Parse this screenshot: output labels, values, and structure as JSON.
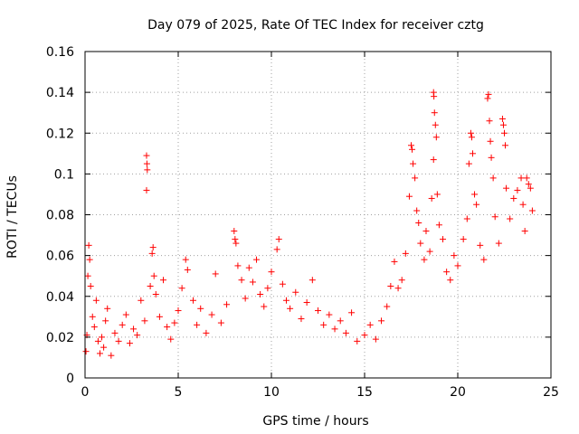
{
  "chart_data": {
    "type": "scatter",
    "title": "Day 079 of 2025, Rate Of TEC Index for receiver cztg",
    "xlabel": "GPS time / hours",
    "ylabel": "ROTI / TECUs",
    "xlim": [
      0,
      25
    ],
    "ylim": [
      0,
      0.16
    ],
    "xticks": [
      0,
      5,
      10,
      15,
      20,
      25
    ],
    "xtick_labels": [
      "0",
      "5",
      "10",
      "15",
      "20",
      "25"
    ],
    "yticks": [
      0,
      0.02,
      0.04,
      0.06,
      0.08,
      0.1,
      0.12,
      0.14,
      0.16
    ],
    "ytick_labels": [
      "0",
      "0.02",
      "0.04",
      "0.06",
      "0.08",
      "0.1",
      "0.12",
      "0.14",
      "0.16"
    ],
    "grid": true,
    "marker": "+",
    "color": "#ff0000",
    "series": [
      {
        "name": "ROTI",
        "points": [
          [
            0.05,
            0.013
          ],
          [
            0.1,
            0.021
          ],
          [
            0.15,
            0.05
          ],
          [
            0.2,
            0.065
          ],
          [
            0.25,
            0.058
          ],
          [
            0.3,
            0.045
          ],
          [
            0.4,
            0.03
          ],
          [
            0.5,
            0.025
          ],
          [
            0.6,
            0.038
          ],
          [
            0.7,
            0.018
          ],
          [
            0.8,
            0.012
          ],
          [
            0.9,
            0.02
          ],
          [
            1.0,
            0.015
          ],
          [
            1.1,
            0.028
          ],
          [
            1.2,
            0.034
          ],
          [
            1.4,
            0.011
          ],
          [
            1.6,
            0.022
          ],
          [
            1.8,
            0.018
          ],
          [
            2.0,
            0.026
          ],
          [
            2.2,
            0.031
          ],
          [
            2.4,
            0.017
          ],
          [
            2.6,
            0.024
          ],
          [
            2.8,
            0.021
          ],
          [
            3.0,
            0.038
          ],
          [
            3.2,
            0.028
          ],
          [
            3.3,
            0.109
          ],
          [
            3.32,
            0.105
          ],
          [
            3.34,
            0.102
          ],
          [
            3.3,
            0.092
          ],
          [
            3.5,
            0.045
          ],
          [
            3.6,
            0.061
          ],
          [
            3.65,
            0.064
          ],
          [
            3.7,
            0.05
          ],
          [
            3.8,
            0.041
          ],
          [
            4.0,
            0.03
          ],
          [
            4.2,
            0.048
          ],
          [
            4.4,
            0.025
          ],
          [
            4.6,
            0.019
          ],
          [
            4.8,
            0.027
          ],
          [
            5.0,
            0.033
          ],
          [
            5.2,
            0.044
          ],
          [
            5.4,
            0.058
          ],
          [
            5.5,
            0.053
          ],
          [
            5.8,
            0.038
          ],
          [
            6.0,
            0.026
          ],
          [
            6.2,
            0.034
          ],
          [
            6.5,
            0.022
          ],
          [
            6.8,
            0.031
          ],
          [
            7.0,
            0.051
          ],
          [
            7.3,
            0.027
          ],
          [
            7.6,
            0.036
          ],
          [
            8.0,
            0.072
          ],
          [
            8.05,
            0.068
          ],
          [
            8.1,
            0.066
          ],
          [
            8.2,
            0.055
          ],
          [
            8.4,
            0.048
          ],
          [
            8.6,
            0.039
          ],
          [
            8.8,
            0.054
          ],
          [
            9.0,
            0.047
          ],
          [
            9.2,
            0.058
          ],
          [
            9.4,
            0.041
          ],
          [
            9.6,
            0.035
          ],
          [
            9.8,
            0.044
          ],
          [
            10.0,
            0.052
          ],
          [
            10.3,
            0.063
          ],
          [
            10.4,
            0.068
          ],
          [
            10.6,
            0.046
          ],
          [
            10.8,
            0.038
          ],
          [
            11.0,
            0.034
          ],
          [
            11.3,
            0.042
          ],
          [
            11.6,
            0.029
          ],
          [
            11.9,
            0.037
          ],
          [
            12.2,
            0.048
          ],
          [
            12.5,
            0.033
          ],
          [
            12.8,
            0.026
          ],
          [
            13.1,
            0.031
          ],
          [
            13.4,
            0.024
          ],
          [
            13.7,
            0.028
          ],
          [
            14.0,
            0.022
          ],
          [
            14.3,
            0.032
          ],
          [
            14.6,
            0.018
          ],
          [
            15.0,
            0.021
          ],
          [
            15.3,
            0.026
          ],
          [
            15.6,
            0.019
          ],
          [
            15.9,
            0.028
          ],
          [
            16.2,
            0.035
          ],
          [
            16.4,
            0.045
          ],
          [
            16.6,
            0.057
          ],
          [
            16.8,
            0.044
          ],
          [
            17.0,
            0.048
          ],
          [
            17.2,
            0.061
          ],
          [
            17.4,
            0.089
          ],
          [
            17.5,
            0.114
          ],
          [
            17.55,
            0.112
          ],
          [
            17.6,
            0.105
          ],
          [
            17.7,
            0.098
          ],
          [
            17.8,
            0.082
          ],
          [
            17.9,
            0.076
          ],
          [
            18.0,
            0.066
          ],
          [
            18.2,
            0.058
          ],
          [
            18.3,
            0.072
          ],
          [
            18.5,
            0.062
          ],
          [
            18.6,
            0.088
          ],
          [
            18.7,
            0.14
          ],
          [
            18.72,
            0.138
          ],
          [
            18.75,
            0.13
          ],
          [
            18.8,
            0.124
          ],
          [
            18.85,
            0.118
          ],
          [
            18.7,
            0.107
          ],
          [
            18.9,
            0.09
          ],
          [
            19.0,
            0.075
          ],
          [
            19.2,
            0.068
          ],
          [
            19.4,
            0.052
          ],
          [
            19.6,
            0.048
          ],
          [
            19.8,
            0.06
          ],
          [
            20.0,
            0.055
          ],
          [
            20.3,
            0.068
          ],
          [
            20.5,
            0.078
          ],
          [
            20.7,
            0.12
          ],
          [
            20.75,
            0.118
          ],
          [
            20.8,
            0.11
          ],
          [
            20.6,
            0.105
          ],
          [
            20.9,
            0.09
          ],
          [
            21.0,
            0.085
          ],
          [
            21.2,
            0.065
          ],
          [
            21.4,
            0.058
          ],
          [
            21.6,
            0.137
          ],
          [
            21.65,
            0.139
          ],
          [
            21.7,
            0.126
          ],
          [
            21.75,
            0.116
          ],
          [
            21.8,
            0.108
          ],
          [
            21.9,
            0.098
          ],
          [
            22.0,
            0.079
          ],
          [
            22.2,
            0.066
          ],
          [
            22.4,
            0.127
          ],
          [
            22.45,
            0.124
          ],
          [
            22.5,
            0.12
          ],
          [
            22.55,
            0.114
          ],
          [
            22.6,
            0.093
          ],
          [
            22.8,
            0.078
          ],
          [
            23.0,
            0.088
          ],
          [
            23.2,
            0.092
          ],
          [
            23.4,
            0.098
          ],
          [
            23.5,
            0.085
          ],
          [
            23.6,
            0.072
          ],
          [
            23.7,
            0.098
          ],
          [
            23.8,
            0.095
          ],
          [
            23.9,
            0.093
          ],
          [
            24.0,
            0.082
          ]
        ]
      }
    ]
  }
}
